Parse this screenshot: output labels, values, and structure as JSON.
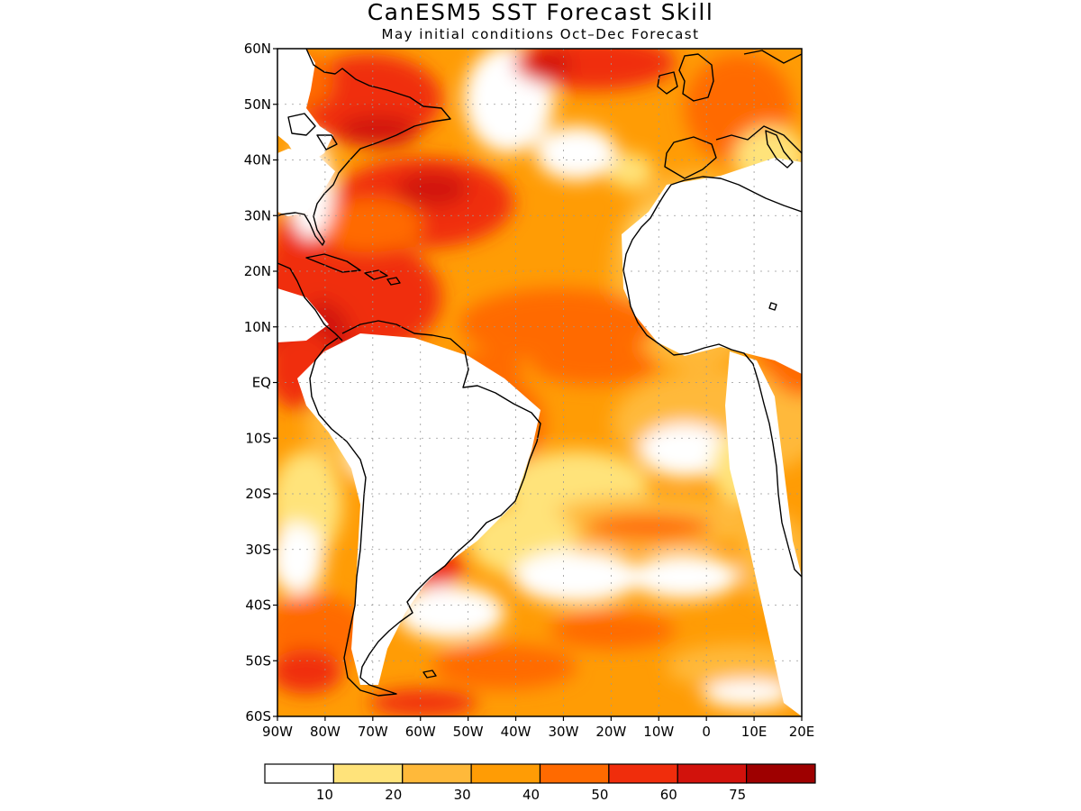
{
  "title": "CanESM5 SST Forecast Skill",
  "subtitle": "May initial conditions  Oct–Dec Forecast",
  "map": {
    "lon_range": [
      -90,
      20
    ],
    "lat_range": [
      -60,
      60
    ],
    "lat_ticks": [
      {
        "value": 60,
        "label": "60N"
      },
      {
        "value": 50,
        "label": "50N"
      },
      {
        "value": 40,
        "label": "40N"
      },
      {
        "value": 30,
        "label": "30N"
      },
      {
        "value": 20,
        "label": "20N"
      },
      {
        "value": 10,
        "label": "10N"
      },
      {
        "value": 0,
        "label": "EQ"
      },
      {
        "value": -10,
        "label": "10S"
      },
      {
        "value": -20,
        "label": "20S"
      },
      {
        "value": -30,
        "label": "30S"
      },
      {
        "value": -40,
        "label": "40S"
      },
      {
        "value": -50,
        "label": "50S"
      },
      {
        "value": -60,
        "label": "60S"
      }
    ],
    "lon_ticks": [
      {
        "value": -90,
        "label": "90W"
      },
      {
        "value": -80,
        "label": "80W"
      },
      {
        "value": -70,
        "label": "70W"
      },
      {
        "value": -60,
        "label": "60W"
      },
      {
        "value": -50,
        "label": "50W"
      },
      {
        "value": -40,
        "label": "40W"
      },
      {
        "value": -30,
        "label": "30W"
      },
      {
        "value": -20,
        "label": "20W"
      },
      {
        "value": -10,
        "label": "10W"
      },
      {
        "value": 0,
        "label": "0"
      },
      {
        "value": 10,
        "label": "10E"
      },
      {
        "value": 20,
        "label": "20E"
      }
    ]
  },
  "colorbar": {
    "bins": [
      {
        "color": "#ffffff"
      },
      {
        "color": "#ffe37a"
      },
      {
        "color": "#ffb93a"
      },
      {
        "color": "#ff9c05"
      },
      {
        "color": "#ff6a00"
      },
      {
        "color": "#f02d0c"
      },
      {
        "color": "#d2120c"
      },
      {
        "color": "#9e0000"
      }
    ],
    "labels": [
      "10",
      "20",
      "30",
      "40",
      "50",
      "60",
      "75"
    ]
  }
}
